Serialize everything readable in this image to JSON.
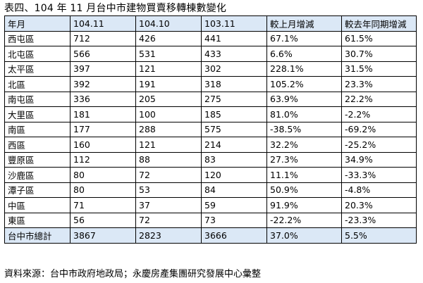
{
  "title": "表四、104 年 11 月台中市建物買賣移轉棟數變化",
  "table": {
    "headers": [
      "年月",
      "104.11",
      "104.10",
      "103.11",
      "較上月增減",
      "較去年同期增減"
    ],
    "rows": [
      [
        "西屯區",
        "712",
        "426",
        "441",
        "67.1%",
        "61.5%"
      ],
      [
        "北屯區",
        "566",
        "531",
        "433",
        "6.6%",
        "30.7%"
      ],
      [
        "太平區",
        "397",
        "121",
        "302",
        "228.1%",
        "31.5%"
      ],
      [
        "北區",
        "392",
        "191",
        "318",
        "105.2%",
        "23.3%"
      ],
      [
        "南屯區",
        "336",
        "205",
        "275",
        "63.9%",
        "22.2%"
      ],
      [
        "大里區",
        "181",
        "100",
        "185",
        "81.0%",
        "-2.2%"
      ],
      [
        "南區",
        "177",
        "288",
        "575",
        "-38.5%",
        "-69.2%"
      ],
      [
        "西區",
        "160",
        "121",
        "214",
        "32.2%",
        "-25.2%"
      ],
      [
        "豐原區",
        "112",
        "88",
        "83",
        "27.3%",
        "34.9%"
      ],
      [
        "沙鹿區",
        "80",
        "72",
        "120",
        "11.1%",
        "-33.3%"
      ],
      [
        "潭子區",
        "80",
        "53",
        "84",
        "50.9%",
        "-4.8%"
      ],
      [
        "中區",
        "71",
        "37",
        "59",
        "91.9%",
        "20.3%"
      ],
      [
        "東區",
        "56",
        "72",
        "73",
        "-22.2%",
        "-23.3%"
      ]
    ],
    "total": [
      "台中市總計",
      "3867",
      "2823",
      "3666",
      "37.0%",
      "5.5%"
    ]
  },
  "source": "資料來源：台中市政府地政局；永慶房產集團研究發展中心彙整",
  "colors": {
    "header_bg": "#dbe8f6",
    "border": "#000000"
  }
}
